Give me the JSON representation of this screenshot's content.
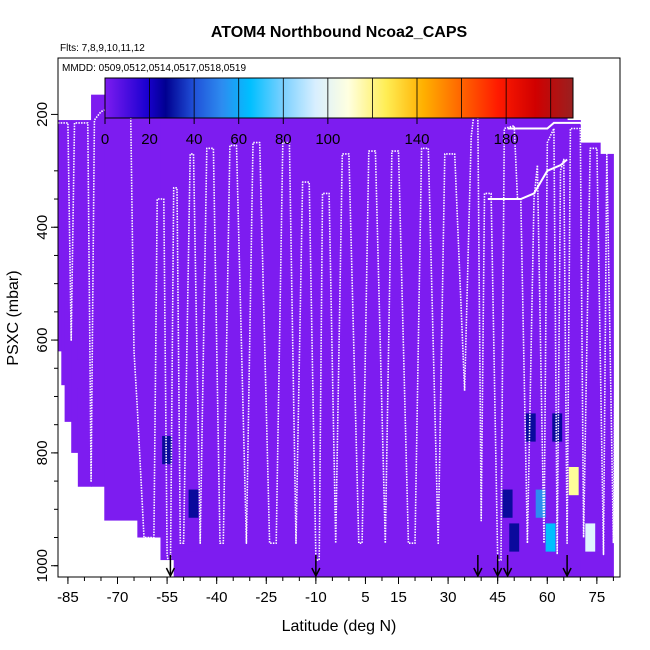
{
  "chart_data": {
    "type": "heatmap",
    "title": "ATOM4 Northbound Ncoa2_CAPS",
    "subtitle_flights": "Flts: 7,8,9,10,11,12",
    "subtitle_dates": "MMDD: 0509,0512,0514,0517,0518,0519",
    "xlabel": "Latitude (deg N)",
    "ylabel": "PSXC (mbar)",
    "xlim": [
      -88,
      82
    ],
    "ylim": [
      1020,
      100
    ],
    "x_ticks": [
      -85,
      -70,
      -55,
      -40,
      -25,
      -10,
      5,
      15,
      30,
      45,
      60,
      75
    ],
    "x_tick_labels": [
      "-85",
      "-70",
      "-55",
      "-40",
      "-25",
      "-10",
      "5",
      "15",
      "30",
      "45",
      "60",
      "75"
    ],
    "y_ticks": [
      200,
      400,
      600,
      800,
      1000
    ],
    "y_tick_labels": [
      "200",
      "400",
      "600",
      "800",
      "1000"
    ],
    "colorbar": {
      "range": [
        0,
        210
      ],
      "tick_values": [
        0,
        20,
        40,
        60,
        80,
        100,
        140,
        180
      ],
      "tick_labels": [
        "0",
        "20",
        "40",
        "60",
        "80",
        "100",
        "140",
        "180"
      ],
      "boundaries": [
        0,
        20,
        40,
        60,
        80,
        100,
        120,
        140,
        160,
        180,
        200
      ],
      "colors": [
        "#7d1cf0",
        "#0a0a9c",
        "#2d8cf0",
        "#00bfff",
        "#e0f4ff",
        "#ffff99",
        "#ffa500",
        "#ff3300",
        "#cc0000",
        "#992222"
      ]
    },
    "background_value": 5,
    "background_color": "#7d1cf0",
    "coverage": [
      {
        "lat_start": -88,
        "lat_end": -87,
        "p_top": 210,
        "p_bottom": 620
      },
      {
        "lat_start": -87,
        "lat_end": -86,
        "p_top": 210,
        "p_bottom": 680
      },
      {
        "lat_start": -86,
        "lat_end": -84,
        "p_top": 210,
        "p_bottom": 745
      },
      {
        "lat_start": -84,
        "lat_end": -82,
        "p_top": 210,
        "p_bottom": 800
      },
      {
        "lat_start": -82,
        "lat_end": -78,
        "p_top": 210,
        "p_bottom": 860
      },
      {
        "lat_start": -78,
        "lat_end": -74,
        "p_top": 165,
        "p_bottom": 860
      },
      {
        "lat_start": -74,
        "lat_end": -64,
        "p_top": 165,
        "p_bottom": 920
      },
      {
        "lat_start": -64,
        "lat_end": -57,
        "p_top": 165,
        "p_bottom": 950
      },
      {
        "lat_start": -57,
        "lat_end": -53,
        "p_top": 165,
        "p_bottom": 990
      },
      {
        "lat_start": -53,
        "lat_end": 66,
        "p_top": 165,
        "p_bottom": 1020
      },
      {
        "lat_start": 66,
        "lat_end": 70,
        "p_top": 210,
        "p_bottom": 1020
      },
      {
        "lat_start": 70,
        "lat_end": 76,
        "p_top": 250,
        "p_bottom": 1020
      },
      {
        "lat_start": 76,
        "lat_end": 80,
        "p_top": 270,
        "p_bottom": 1020
      }
    ],
    "cells": [
      {
        "lat": -81,
        "p": 660,
        "value": 8
      },
      {
        "lat": -55,
        "p": 795,
        "value": 25
      },
      {
        "lat": -47,
        "p": 890,
        "value": 35
      },
      {
        "lat": -47,
        "p": 950,
        "value": 15
      },
      {
        "lat": 48,
        "p": 890,
        "value": 30
      },
      {
        "lat": 50,
        "p": 950,
        "value": 25
      },
      {
        "lat": 55,
        "p": 755,
        "value": 28
      },
      {
        "lat": 58,
        "p": 890,
        "value": 45
      },
      {
        "lat": 61,
        "p": 950,
        "value": 70
      },
      {
        "lat": 63,
        "p": 755,
        "value": 22
      },
      {
        "lat": 68,
        "p": 850,
        "value": 110
      },
      {
        "lat": 73,
        "p": 950,
        "value": 85
      }
    ],
    "arrows_lat": [
      -54,
      -10,
      39,
      45,
      48,
      66
    ],
    "flight_track": [
      [
        -88,
        215
      ],
      [
        -87,
        215
      ],
      [
        -85,
        215
      ],
      [
        -84,
        600
      ],
      [
        -83,
        215
      ],
      [
        -79,
        215
      ],
      [
        -78,
        850
      ],
      [
        -77,
        210
      ],
      [
        -75,
        195
      ],
      [
        -73,
        190
      ],
      [
        -68,
        190
      ],
      [
        -66,
        200
      ],
      [
        -65,
        620
      ],
      [
        -64,
        720
      ],
      [
        -62,
        950
      ],
      [
        -59,
        950
      ],
      [
        -58,
        350
      ],
      [
        -56,
        350
      ],
      [
        -55,
        980
      ],
      [
        -54,
        1020
      ],
      [
        -53,
        330
      ],
      [
        -52,
        330
      ],
      [
        -51,
        960
      ],
      [
        -50,
        960
      ],
      [
        -48,
        270
      ],
      [
        -47,
        270
      ],
      [
        -45,
        960
      ],
      [
        -43,
        260
      ],
      [
        -41,
        260
      ],
      [
        -39,
        960
      ],
      [
        -38,
        960
      ],
      [
        -36,
        255
      ],
      [
        -34,
        255
      ],
      [
        -31,
        960
      ],
      [
        -29,
        250
      ],
      [
        -27,
        250
      ],
      [
        -24,
        960
      ],
      [
        -22,
        960
      ],
      [
        -20,
        250
      ],
      [
        -18,
        250
      ],
      [
        -16,
        960
      ],
      [
        -14,
        320
      ],
      [
        -12,
        320
      ],
      [
        -10,
        990
      ],
      [
        -9,
        990
      ],
      [
        -8,
        340
      ],
      [
        -6,
        340
      ],
      [
        -4,
        960
      ],
      [
        -2,
        270
      ],
      [
        0,
        270
      ],
      [
        3,
        960
      ],
      [
        4,
        960
      ],
      [
        6,
        265
      ],
      [
        8,
        265
      ],
      [
        11,
        960
      ],
      [
        13,
        265
      ],
      [
        15,
        265
      ],
      [
        18,
        960
      ],
      [
        20,
        960
      ],
      [
        22,
        260
      ],
      [
        24,
        260
      ],
      [
        27,
        960
      ],
      [
        29,
        270
      ],
      [
        32,
        270
      ],
      [
        35,
        690
      ],
      [
        37,
        240
      ],
      [
        38,
        190
      ],
      [
        39,
        200
      ],
      [
        40,
        920
      ],
      [
        41,
        340
      ],
      [
        43,
        340
      ],
      [
        45,
        990
      ],
      [
        46,
        990
      ],
      [
        47,
        225
      ],
      [
        50,
        220
      ],
      [
        51,
        350
      ],
      [
        52,
        350
      ],
      [
        54,
        960
      ],
      [
        56,
        350
      ],
      [
        57,
        290
      ],
      [
        59,
        960
      ],
      [
        60,
        250
      ],
      [
        62,
        225
      ],
      [
        63,
        980
      ],
      [
        64,
        300
      ],
      [
        65,
        280
      ],
      [
        66,
        960
      ],
      [
        67,
        225
      ],
      [
        70,
        225
      ],
      [
        71,
        950
      ],
      [
        73,
        260
      ],
      [
        75,
        260
      ],
      [
        77,
        980
      ],
      [
        78,
        270
      ],
      [
        80,
        960
      ],
      [
        81,
        300
      ]
    ],
    "flight_track_upper": [
      [
        48,
        225
      ],
      [
        53,
        225
      ],
      [
        60,
        225
      ],
      [
        62,
        215
      ],
      [
        66,
        215
      ],
      [
        70,
        215
      ],
      [
        72,
        225
      ]
    ],
    "flight_track_mid": [
      [
        42,
        350
      ],
      [
        52,
        350
      ],
      [
        56,
        340
      ],
      [
        60,
        300
      ],
      [
        64,
        290
      ],
      [
        66,
        280
      ]
    ]
  }
}
